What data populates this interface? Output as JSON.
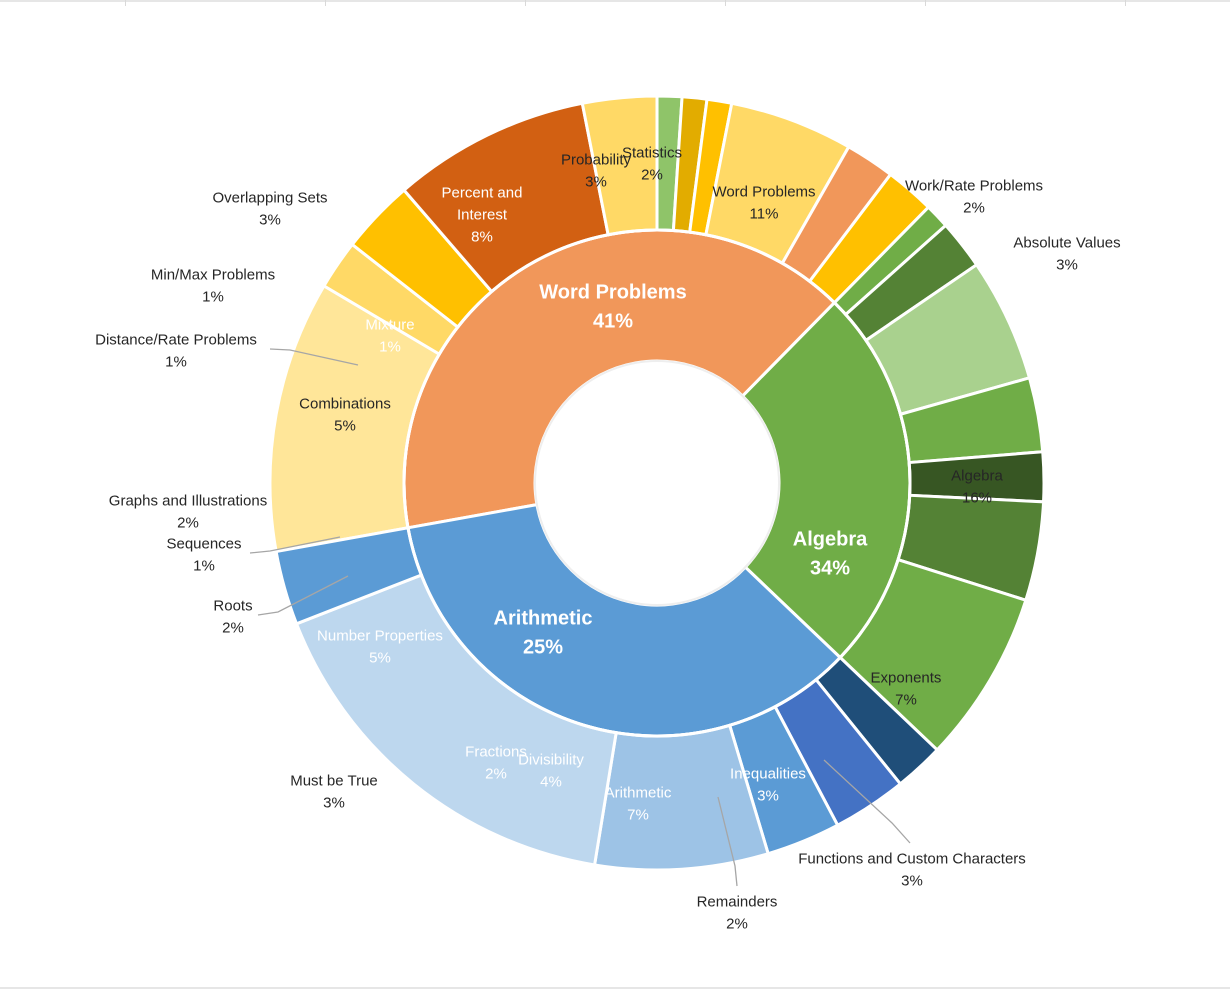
{
  "chart_data": {
    "type": "sunburst",
    "title": "",
    "categories": [
      {
        "name": "Word Problems",
        "pct": "41%",
        "color": "#F1975A",
        "children": [
          {
            "name": "Word Problems",
            "pct": "11%",
            "value": 11,
            "color": "#FFE699",
            "label": "Word Problems\n11%",
            "label_pos": "inside",
            "label_color": "#262626"
          },
          {
            "name": "Statistics",
            "pct": "2%",
            "value": 2,
            "color": "#FFD966",
            "label": "Statistics\n2%",
            "label_pos": "inside",
            "label_color": "#262626"
          },
          {
            "name": "Probability",
            "pct": "3%",
            "value": 3,
            "color": "#FFC000",
            "label": "Probability\n3%",
            "label_pos": "inside",
            "label_color": "#262626"
          },
          {
            "name": "Percent and Interest",
            "pct": "8%",
            "value": 8,
            "color": "#D26012",
            "label": "Percent and\nInterest\n8%",
            "label_pos": "inside",
            "label_color": "#ffffff"
          },
          {
            "name": "Overlapping Sets",
            "pct": "3%",
            "value": 3,
            "color": "#FFD966",
            "label": "Overlapping Sets\n3%",
            "label_pos": "outside",
            "label_color": "#262626"
          },
          {
            "name": "Min/Max Problems",
            "pct": "1%",
            "value": 1,
            "color": "#8FC469",
            "label": "Min/Max Problems\n1%",
            "label_pos": "outside",
            "label_color": "#262626"
          },
          {
            "name": "Mixture",
            "pct": "1%",
            "value": 1,
            "color": "#E2AC00",
            "label": "Mixture\n1%",
            "label_pos": "inside",
            "label_color": "#ffffff"
          },
          {
            "name": "Distance/Rate Problems",
            "pct": "1%",
            "value": 1,
            "color": "#FFC000",
            "label": "Distance/Rate Problems\n1%",
            "label_pos": "outside",
            "label_color": "#262626"
          },
          {
            "name": "Combinations",
            "pct": "5%",
            "value": 5,
            "color": "#FFD966",
            "label": "Combinations\n5%",
            "label_pos": "inside",
            "label_color": "#262626"
          },
          {
            "name": "Graphs and Illustrations",
            "pct": "2%",
            "value": 2,
            "color": "#F1975A",
            "label": "Graphs and Illustrations\n2%",
            "label_pos": "outside",
            "label_color": "#262626"
          },
          {
            "name": "Work/Rate Problems",
            "pct": "2%",
            "value": 2,
            "color": "#FFC000",
            "label": "Work/Rate Problems\n2%",
            "label_pos": "outside",
            "label_color": "#262626"
          }
        ]
      },
      {
        "name": "Arithmetic",
        "pct": "25%",
        "color": "#70AD47",
        "children": [
          {
            "name": "Sequences",
            "pct": "1%",
            "value": 1,
            "color": "#70AD47",
            "label": "Sequences\n1%",
            "label_pos": "outside",
            "label_color": "#262626"
          },
          {
            "name": "Roots",
            "pct": "2%",
            "value": 2,
            "color": "#548235",
            "label": "Roots\n2%",
            "label_pos": "outside",
            "label_color": "#262626"
          },
          {
            "name": "Number Properties",
            "pct": "5%",
            "value": 5,
            "color": "#A9D18E",
            "label": "Number Properties\n5%",
            "label_pos": "inside",
            "label_color": "#ffffff"
          },
          {
            "name": "Must be True",
            "pct": "3%",
            "value": 3,
            "color": "#70AD47",
            "label": "Must be True\n3%",
            "label_pos": "outside",
            "label_color": "#262626"
          },
          {
            "name": "Fractions",
            "pct": "2%",
            "value": 2,
            "color": "#375623",
            "label": "Fractions\n2%",
            "label_pos": "inside",
            "label_color": "#ffffff"
          },
          {
            "name": "Divisibility",
            "pct": "4%",
            "value": 4,
            "color": "#548235",
            "label": "Divisibility\n4%",
            "label_pos": "inside",
            "label_color": "#ffffff"
          },
          {
            "name": "Arithmetic",
            "pct": "7%",
            "value": 7,
            "color": "#70AD47",
            "label": "Arithmetic\n7%",
            "label_pos": "inside",
            "label_color": "#ffffff"
          }
        ]
      },
      {
        "name": "Algebra",
        "pct": "34%",
        "color": "#5B9BD5",
        "children": [
          {
            "name": "Remainders",
            "pct": "2%",
            "value": 2,
            "color": "#1F4E79",
            "label": "Remainders\n2%",
            "label_pos": "outside",
            "label_color": "#262626"
          },
          {
            "name": "Inequalities",
            "pct": "3%",
            "value": 3,
            "color": "#4472C4",
            "label": "Inequalities\n3%",
            "label_pos": "inside",
            "label_color": "#ffffff"
          },
          {
            "name": "Functions and Custom Characters",
            "pct": "3%",
            "value": 3,
            "color": "#5B9BD5",
            "label": "Functions and Custom Characters\n3%",
            "label_pos": "outside",
            "label_color": "#262626"
          },
          {
            "name": "Exponents",
            "pct": "7%",
            "value": 7,
            "color": "#9DC3E6",
            "label": "Exponents\n7%",
            "label_pos": "inside",
            "label_color": "#262626"
          },
          {
            "name": "Algebra",
            "pct": "16%",
            "value": 16,
            "color": "#BDD7EE",
            "label": "Algebra\n16%",
            "label_pos": "inside",
            "label_color": "#262626"
          },
          {
            "name": "Absolute Values",
            "pct": "3%",
            "value": 3,
            "color": "#5B9BD5",
            "label": "Absolute Values\n3%",
            "label_pos": "outside",
            "label_color": "#262626"
          }
        ]
      }
    ]
  }
}
